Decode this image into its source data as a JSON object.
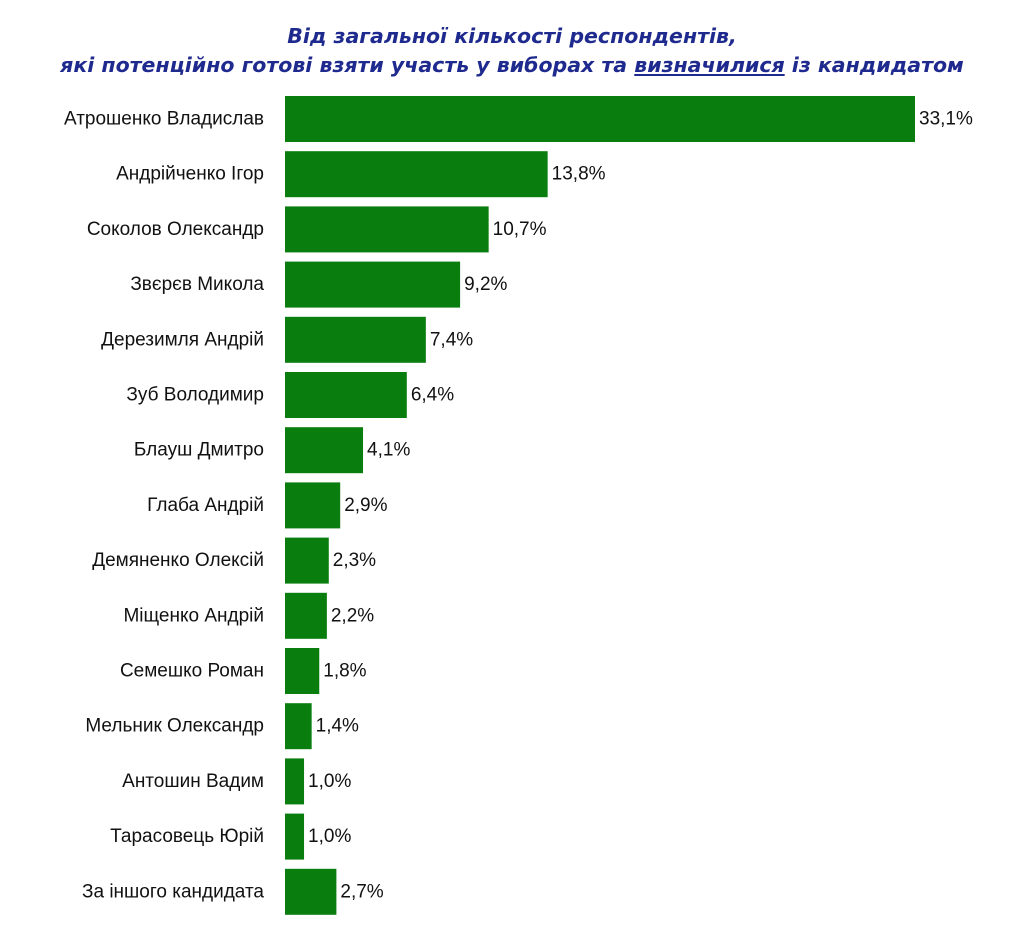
{
  "chart_data": {
    "type": "bar",
    "orientation": "horizontal",
    "title_line1": "Від загальної кількості респондентів,",
    "title_line2_prefix": "які потенційно готові взяти участь у виборах та ",
    "title_line2_underlined": "визначилися",
    "title_line2_suffix": " із кандидатом",
    "categories": [
      "Атрошенко Владислав",
      "Андрійченко Ігор",
      "Соколов Олександр",
      "Звєрєв Микола",
      "Дерезимля Андрій",
      "Зуб Володимир",
      "Блауш Дмитро",
      "Глаба Андрій",
      "Демяненко Олексій",
      "Міщенко Андрій",
      "Семешко Роман",
      "Мельник Олександр",
      "Антошин Вадим",
      "Тарасовець Юрій",
      "За іншого кандидата"
    ],
    "values": [
      33.1,
      13.8,
      10.7,
      9.2,
      7.4,
      6.4,
      4.1,
      2.9,
      2.3,
      2.2,
      1.8,
      1.4,
      1.0,
      1.0,
      2.7
    ],
    "value_labels": [
      "33,1%",
      "13,8%",
      "10,7%",
      "9,2%",
      "7,4%",
      "6,4%",
      "4,1%",
      "2,9%",
      "2,3%",
      "2,2%",
      "1,8%",
      "1,4%",
      "1,0%",
      "1,0%",
      "2,7%"
    ],
    "xlim": [
      0,
      33.1
    ],
    "grid": false,
    "legend": "none",
    "bar_color": "#0a7d0f",
    "title_color": "#1f2a8f"
  }
}
